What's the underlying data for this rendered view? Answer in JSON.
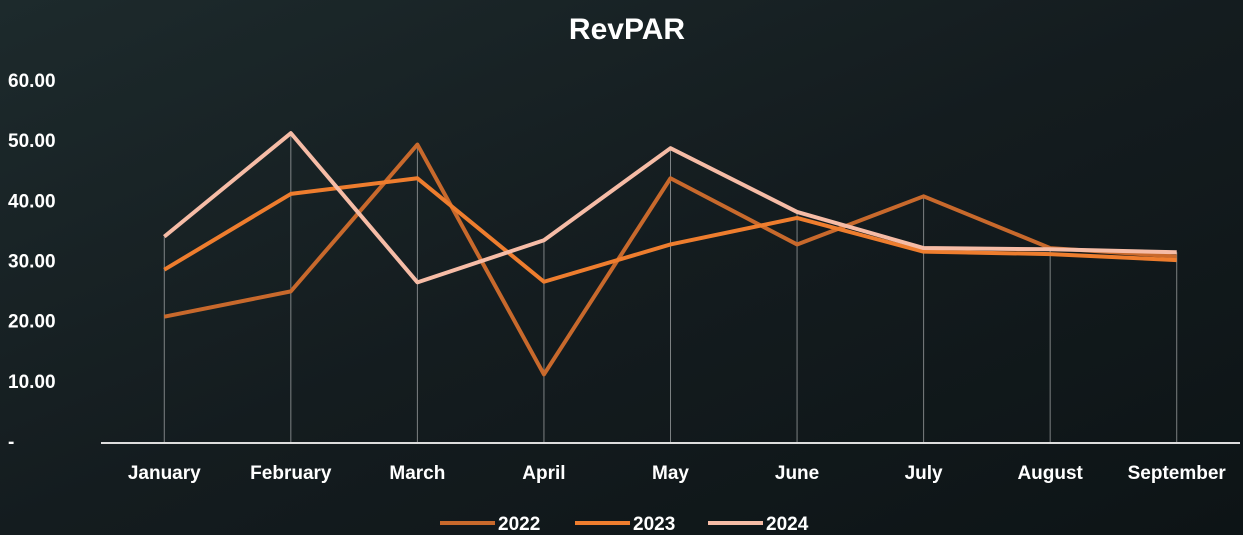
{
  "chart_data": {
    "type": "line",
    "title": "RevPAR",
    "categories": [
      "January",
      "February",
      "March",
      "April",
      "May",
      "June",
      "July",
      "August",
      "September"
    ],
    "series": [
      {
        "name": "2022",
        "color": "#c8692c",
        "values": [
          21,
          25.2,
          49.6,
          11.4,
          44,
          33,
          41,
          32.4,
          31
        ]
      },
      {
        "name": "2023",
        "color": "#ee7d2e",
        "values": [
          28.8,
          41.4,
          44,
          26.8,
          33,
          37.4,
          31.8,
          31.4,
          30.4
        ]
      },
      {
        "name": "2024",
        "color": "#f6bca6",
        "values": [
          34.3,
          51.5,
          26.7,
          33.7,
          49,
          38.4,
          32.4,
          32.2,
          31.7
        ]
      }
    ],
    "ylim": [
      0,
      60
    ],
    "yticks": [
      {
        "value": 0,
        "label": "-"
      },
      {
        "value": 10,
        "label": "10.00"
      },
      {
        "value": 20,
        "label": "20.00"
      },
      {
        "value": 30,
        "label": "30.00"
      },
      {
        "value": 40,
        "label": "40.00"
      },
      {
        "value": 50,
        "label": "50.00"
      },
      {
        "value": 60,
        "label": "60.00"
      }
    ],
    "grid": true
  }
}
